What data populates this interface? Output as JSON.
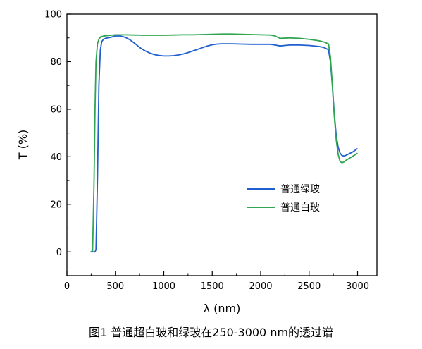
{
  "caption": "图1 普通超白玻和绿玻在250-3000 nm的透过谱",
  "chart_data": {
    "type": "line",
    "title": "",
    "xlabel": "λ (nm)",
    "ylabel": "T (%)",
    "xlim": [
      0,
      3200
    ],
    "ylim": [
      -10,
      100
    ],
    "xticks": [
      0,
      500,
      1000,
      1500,
      2000,
      2500,
      3000
    ],
    "yticks": [
      0,
      20,
      40,
      60,
      80,
      100
    ],
    "grid": false,
    "legend_position": "center-right",
    "series": [
      {
        "name": "普通绿玻",
        "color": "#1f5fd0",
        "points": [
          [
            250,
            0
          ],
          [
            290,
            0
          ],
          [
            300,
            1
          ],
          [
            315,
            30
          ],
          [
            330,
            70
          ],
          [
            345,
            85
          ],
          [
            360,
            88.5
          ],
          [
            380,
            89.5
          ],
          [
            400,
            89.8
          ],
          [
            450,
            90.2
          ],
          [
            500,
            90.8
          ],
          [
            550,
            90.8
          ],
          [
            600,
            90.3
          ],
          [
            650,
            89.2
          ],
          [
            700,
            87.7
          ],
          [
            750,
            86.0
          ],
          [
            800,
            84.7
          ],
          [
            850,
            83.7
          ],
          [
            900,
            83.0
          ],
          [
            950,
            82.6
          ],
          [
            1000,
            82.4
          ],
          [
            1050,
            82.4
          ],
          [
            1100,
            82.5
          ],
          [
            1150,
            82.8
          ],
          [
            1200,
            83.2
          ],
          [
            1250,
            83.8
          ],
          [
            1300,
            84.5
          ],
          [
            1350,
            85.2
          ],
          [
            1400,
            85.9
          ],
          [
            1450,
            86.6
          ],
          [
            1500,
            87.1
          ],
          [
            1550,
            87.4
          ],
          [
            1600,
            87.5
          ],
          [
            1700,
            87.5
          ],
          [
            1800,
            87.4
          ],
          [
            1900,
            87.3
          ],
          [
            2000,
            87.3
          ],
          [
            2100,
            87.3
          ],
          [
            2150,
            87.0
          ],
          [
            2200,
            86.6
          ],
          [
            2250,
            86.8
          ],
          [
            2300,
            87.0
          ],
          [
            2400,
            87.0
          ],
          [
            2500,
            86.8
          ],
          [
            2600,
            86.4
          ],
          [
            2650,
            86.0
          ],
          [
            2700,
            85.0
          ],
          [
            2720,
            80.0
          ],
          [
            2740,
            70.0
          ],
          [
            2760,
            58.0
          ],
          [
            2780,
            49.0
          ],
          [
            2800,
            44.0
          ],
          [
            2820,
            41.5
          ],
          [
            2840,
            40.5
          ],
          [
            2860,
            40.3
          ],
          [
            2880,
            40.6
          ],
          [
            2900,
            41.0
          ],
          [
            2950,
            42.0
          ],
          [
            3000,
            43.5
          ]
        ]
      },
      {
        "name": "普通白玻",
        "color": "#2fa552",
        "points": [
          [
            245,
            0
          ],
          [
            265,
            0.5
          ],
          [
            280,
            30
          ],
          [
            290,
            60
          ],
          [
            300,
            80
          ],
          [
            315,
            87.5
          ],
          [
            330,
            89.5
          ],
          [
            350,
            90.5
          ],
          [
            400,
            90.9
          ],
          [
            500,
            91.3
          ],
          [
            600,
            91.3
          ],
          [
            700,
            91.2
          ],
          [
            800,
            91.1
          ],
          [
            900,
            91.1
          ],
          [
            1000,
            91.1
          ],
          [
            1100,
            91.2
          ],
          [
            1200,
            91.3
          ],
          [
            1300,
            91.3
          ],
          [
            1400,
            91.4
          ],
          [
            1500,
            91.5
          ],
          [
            1600,
            91.6
          ],
          [
            1700,
            91.6
          ],
          [
            1800,
            91.5
          ],
          [
            1900,
            91.4
          ],
          [
            2000,
            91.3
          ],
          [
            2100,
            91.2
          ],
          [
            2150,
            90.8
          ],
          [
            2200,
            89.8
          ],
          [
            2250,
            89.9
          ],
          [
            2300,
            90.0
          ],
          [
            2400,
            89.8
          ],
          [
            2500,
            89.4
          ],
          [
            2600,
            88.8
          ],
          [
            2650,
            88.3
          ],
          [
            2700,
            87.5
          ],
          [
            2720,
            82.0
          ],
          [
            2740,
            70.0
          ],
          [
            2760,
            57.0
          ],
          [
            2780,
            47.0
          ],
          [
            2800,
            41.0
          ],
          [
            2820,
            38.0
          ],
          [
            2840,
            37.5
          ],
          [
            2860,
            37.8
          ],
          [
            2880,
            38.5
          ],
          [
            2900,
            39.0
          ],
          [
            2950,
            40.2
          ],
          [
            3000,
            41.5
          ]
        ]
      }
    ]
  }
}
